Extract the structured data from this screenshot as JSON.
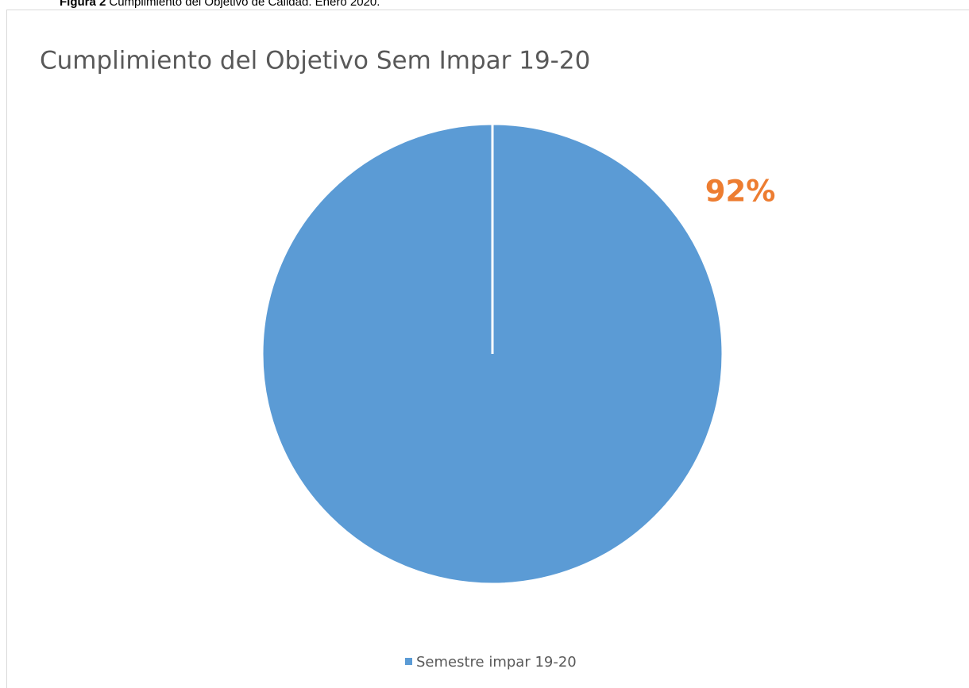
{
  "caption": {
    "label": "Figura 2",
    "text": "Cumplimiento del Objetivo de Calidad. Enero 2020."
  },
  "chart_data": {
    "type": "pie",
    "title": "Cumplimiento del Objetivo Sem Impar 19-20",
    "categories": [
      "Semestre impar 19-20"
    ],
    "values": [
      92
    ],
    "value_labels": [
      "92%"
    ],
    "colors": [
      "#5b9bd5"
    ],
    "label_color": "#ed7d31",
    "legend": "bottom"
  }
}
